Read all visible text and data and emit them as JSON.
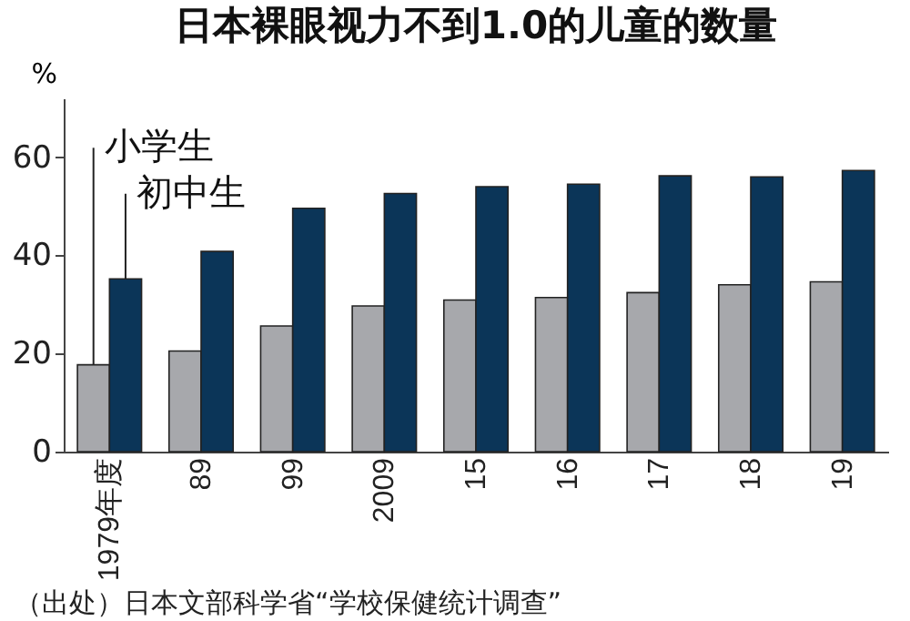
{
  "chart_data": {
    "type": "bar",
    "title": "日本裸眼视力不到1.0的儿童的数量",
    "ylabel": "%",
    "categories": [
      "1979年度",
      "89",
      "99",
      "2009",
      "15",
      "16",
      "17",
      "18",
      "19"
    ],
    "series": [
      {
        "name": "小学生",
        "color": "#a7a8ac",
        "values": [
          17.7,
          20.5,
          25.6,
          29.7,
          30.9,
          31.4,
          32.4,
          34.0,
          34.6
        ]
      },
      {
        "name": "初中生",
        "color": "#0b3558",
        "values": [
          35.2,
          40.8,
          49.6,
          52.6,
          54.0,
          54.5,
          56.2,
          56.0,
          57.3
        ]
      }
    ],
    "ylim": [
      0,
      72
    ],
    "yticks": [
      0,
      20,
      40,
      60
    ],
    "grid": false,
    "annotations": [
      "（出处）日本文部科学省“学校保健统计调查”"
    ]
  }
}
